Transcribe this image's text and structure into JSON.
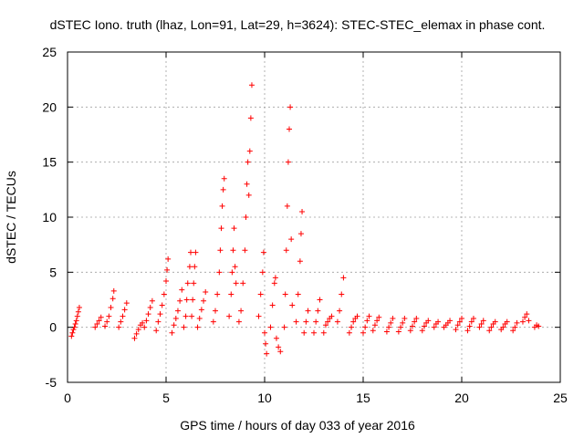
{
  "chart_data": {
    "type": "scatter",
    "title": "dSTEC Iono. truth (lhaz, Lon=91, Lat=29, h=3624): STEC-STEC_elemax in phase cont.",
    "xlabel": "GPS time / hours of day 033 of year 2016",
    "ylabel": "dSTEC  / TECUs",
    "xlim": [
      0,
      25
    ],
    "ylim": [
      -5,
      25
    ],
    "xticks": [
      0,
      5,
      10,
      15,
      20,
      25
    ],
    "xtick_labels": [
      "0",
      "5",
      "10",
      "15",
      "20",
      "25"
    ],
    "yticks": [
      -5,
      0,
      5,
      10,
      15,
      20,
      25
    ],
    "ytick_labels": [
      "-5",
      "0",
      "5",
      "10",
      "15",
      "20",
      "25"
    ],
    "grid": true,
    "marker": "plus",
    "marker_color": "#ff0000",
    "series": [
      {
        "points": [
          [
            0.2,
            -0.8
          ],
          [
            0.25,
            -0.5
          ],
          [
            0.3,
            -0.2
          ],
          [
            0.35,
            0.0
          ],
          [
            0.4,
            0.3
          ],
          [
            0.45,
            0.6
          ],
          [
            0.5,
            1.0
          ],
          [
            0.55,
            1.4
          ],
          [
            0.6,
            1.8
          ],
          [
            1.4,
            0.0
          ],
          [
            1.5,
            0.3
          ],
          [
            1.6,
            0.6
          ],
          [
            1.7,
            0.9
          ],
          [
            1.9,
            0.1
          ],
          [
            2.0,
            0.5
          ],
          [
            2.1,
            1.0
          ],
          [
            2.2,
            1.8
          ],
          [
            2.3,
            2.6
          ],
          [
            2.35,
            3.3
          ],
          [
            2.6,
            0.0
          ],
          [
            2.7,
            0.5
          ],
          [
            2.8,
            1.0
          ],
          [
            2.9,
            1.6
          ],
          [
            3.0,
            2.2
          ],
          [
            3.4,
            -1.0
          ],
          [
            3.5,
            -0.6
          ],
          [
            3.6,
            -0.2
          ],
          [
            3.7,
            0.2
          ],
          [
            3.8,
            0.4
          ],
          [
            3.9,
            0.0
          ],
          [
            4.0,
            0.6
          ],
          [
            4.1,
            1.2
          ],
          [
            4.2,
            1.8
          ],
          [
            4.3,
            2.4
          ],
          [
            4.5,
            -0.3
          ],
          [
            4.6,
            0.5
          ],
          [
            4.7,
            1.2
          ],
          [
            4.8,
            2.0
          ],
          [
            4.9,
            3.0
          ],
          [
            5.0,
            4.2
          ],
          [
            5.05,
            5.2
          ],
          [
            5.1,
            6.2
          ],
          [
            5.3,
            -0.5
          ],
          [
            5.4,
            0.2
          ],
          [
            5.5,
            0.8
          ],
          [
            5.6,
            1.5
          ],
          [
            5.7,
            2.4
          ],
          [
            5.8,
            3.4
          ],
          [
            5.9,
            0.0
          ],
          [
            6.0,
            1.0
          ],
          [
            6.05,
            2.5
          ],
          [
            6.1,
            4.0
          ],
          [
            6.2,
            5.5
          ],
          [
            6.25,
            6.8
          ],
          [
            6.3,
            1.0
          ],
          [
            6.35,
            2.5
          ],
          [
            6.4,
            4.0
          ],
          [
            6.45,
            5.5
          ],
          [
            6.5,
            6.8
          ],
          [
            6.6,
            0.0
          ],
          [
            6.7,
            0.8
          ],
          [
            6.8,
            1.6
          ],
          [
            6.9,
            2.4
          ],
          [
            7.0,
            3.2
          ],
          [
            7.4,
            0.5
          ],
          [
            7.5,
            1.5
          ],
          [
            7.6,
            3.0
          ],
          [
            7.7,
            5.0
          ],
          [
            7.75,
            7.0
          ],
          [
            7.8,
            9.0
          ],
          [
            7.85,
            11.0
          ],
          [
            7.9,
            12.5
          ],
          [
            7.95,
            13.5
          ],
          [
            8.2,
            1.0
          ],
          [
            8.3,
            3.0
          ],
          [
            8.35,
            5.0
          ],
          [
            8.4,
            7.0
          ],
          [
            8.45,
            9.0
          ],
          [
            8.5,
            5.5
          ],
          [
            8.55,
            4.0
          ],
          [
            8.7,
            0.5
          ],
          [
            8.8,
            1.5
          ],
          [
            8.9,
            4.0
          ],
          [
            9.0,
            7.0
          ],
          [
            9.05,
            10.0
          ],
          [
            9.1,
            13.0
          ],
          [
            9.15,
            15.0
          ],
          [
            9.2,
            12.0
          ],
          [
            9.25,
            16.0
          ],
          [
            9.3,
            19.0
          ],
          [
            9.35,
            22.0
          ],
          [
            9.7,
            1.0
          ],
          [
            9.8,
            3.0
          ],
          [
            9.9,
            5.0
          ],
          [
            9.95,
            6.8
          ],
          [
            10.0,
            -0.5
          ],
          [
            10.05,
            -1.5
          ],
          [
            10.1,
            -2.4
          ],
          [
            10.3,
            0.0
          ],
          [
            10.4,
            2.0
          ],
          [
            10.5,
            4.0
          ],
          [
            10.55,
            4.5
          ],
          [
            10.6,
            -1.0
          ],
          [
            10.7,
            -1.8
          ],
          [
            10.8,
            -2.2
          ],
          [
            11.0,
            0.0
          ],
          [
            11.05,
            3.0
          ],
          [
            11.1,
            7.0
          ],
          [
            11.15,
            11.0
          ],
          [
            11.2,
            15.0
          ],
          [
            11.25,
            18.0
          ],
          [
            11.3,
            20.0
          ],
          [
            11.35,
            8.0
          ],
          [
            11.4,
            2.0
          ],
          [
            11.6,
            0.5
          ],
          [
            11.7,
            3.0
          ],
          [
            11.8,
            6.0
          ],
          [
            11.85,
            8.5
          ],
          [
            11.9,
            10.5
          ],
          [
            12.0,
            -0.5
          ],
          [
            12.1,
            0.5
          ],
          [
            12.2,
            1.5
          ],
          [
            12.5,
            -0.5
          ],
          [
            12.6,
            0.5
          ],
          [
            12.7,
            1.5
          ],
          [
            12.8,
            2.5
          ],
          [
            13.0,
            -0.5
          ],
          [
            13.1,
            0.2
          ],
          [
            13.2,
            0.5
          ],
          [
            13.3,
            0.8
          ],
          [
            13.4,
            1.0
          ],
          [
            13.7,
            0.5
          ],
          [
            13.8,
            1.5
          ],
          [
            13.9,
            3.0
          ],
          [
            14.0,
            4.5
          ],
          [
            14.3,
            -0.5
          ],
          [
            14.4,
            0.0
          ],
          [
            14.5,
            0.5
          ],
          [
            14.6,
            0.8
          ],
          [
            14.7,
            1.0
          ],
          [
            15.0,
            -0.5
          ],
          [
            15.1,
            0.0
          ],
          [
            15.2,
            0.6
          ],
          [
            15.3,
            1.0
          ],
          [
            15.5,
            -0.3
          ],
          [
            15.6,
            0.2
          ],
          [
            15.7,
            0.6
          ],
          [
            15.8,
            0.9
          ],
          [
            16.2,
            -0.4
          ],
          [
            16.3,
            0.0
          ],
          [
            16.4,
            0.4
          ],
          [
            16.5,
            0.8
          ],
          [
            16.8,
            -0.4
          ],
          [
            16.9,
            0.0
          ],
          [
            17.0,
            0.4
          ],
          [
            17.1,
            0.8
          ],
          [
            17.4,
            -0.3
          ],
          [
            17.5,
            0.1
          ],
          [
            17.6,
            0.5
          ],
          [
            17.7,
            0.8
          ],
          [
            18.0,
            -0.3
          ],
          [
            18.1,
            0.1
          ],
          [
            18.2,
            0.4
          ],
          [
            18.3,
            0.6
          ],
          [
            18.6,
            0.0
          ],
          [
            18.7,
            0.3
          ],
          [
            18.8,
            0.5
          ],
          [
            19.1,
            0.0
          ],
          [
            19.2,
            0.2
          ],
          [
            19.3,
            0.4
          ],
          [
            19.4,
            0.6
          ],
          [
            19.7,
            -0.2
          ],
          [
            19.8,
            0.2
          ],
          [
            19.9,
            0.5
          ],
          [
            20.0,
            0.8
          ],
          [
            20.3,
            -0.3
          ],
          [
            20.4,
            0.1
          ],
          [
            20.5,
            0.5
          ],
          [
            20.6,
            0.8
          ],
          [
            20.9,
            0.0
          ],
          [
            21.0,
            0.3
          ],
          [
            21.1,
            0.6
          ],
          [
            21.4,
            -0.3
          ],
          [
            21.5,
            0.0
          ],
          [
            21.6,
            0.3
          ],
          [
            21.7,
            0.5
          ],
          [
            22.0,
            -0.2
          ],
          [
            22.1,
            0.0
          ],
          [
            22.2,
            0.3
          ],
          [
            22.3,
            0.5
          ],
          [
            22.6,
            -0.3
          ],
          [
            22.7,
            0.0
          ],
          [
            22.8,
            0.4
          ],
          [
            23.1,
            0.5
          ],
          [
            23.2,
            0.9
          ],
          [
            23.3,
            1.2
          ],
          [
            23.4,
            0.6
          ],
          [
            23.7,
            0.0
          ],
          [
            23.8,
            0.2
          ],
          [
            23.9,
            0.1
          ]
        ]
      }
    ]
  }
}
